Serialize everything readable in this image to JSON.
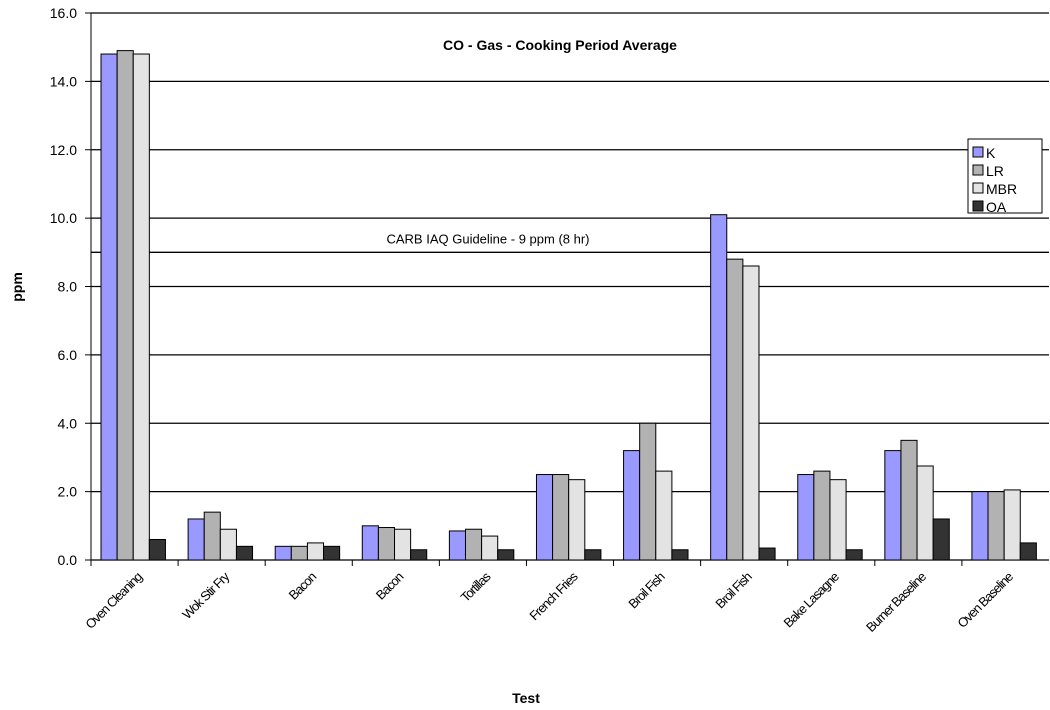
{
  "chart_data": {
    "type": "bar",
    "title": "CO - Gas - Cooking Period Average",
    "x_label": "Test",
    "y_label": "ppm",
    "categories": [
      "Oven Cleaning",
      "Wok Stir Fry",
      "Bacon",
      "Bacon",
      "Tortillas",
      "French Fries",
      "Broil Fish",
      "Broil Fish",
      "Bake Lasagne",
      "Burner Baseline",
      "Oven Baseline"
    ],
    "series": [
      {
        "name": "K",
        "color": "#9999ff",
        "values": [
          14.8,
          1.2,
          0.4,
          1.0,
          0.85,
          2.5,
          3.2,
          10.1,
          2.5,
          3.2,
          2.0
        ]
      },
      {
        "name": "LR",
        "color": "#b2b2b2",
        "values": [
          14.9,
          1.4,
          0.4,
          0.95,
          0.9,
          2.5,
          4.0,
          8.8,
          2.6,
          3.5,
          2.0
        ]
      },
      {
        "name": "MBR",
        "color": "#e3e3e3",
        "values": [
          14.8,
          0.9,
          0.5,
          0.9,
          0.7,
          2.35,
          2.6,
          8.6,
          2.35,
          2.75,
          2.05
        ]
      },
      {
        "name": "OA",
        "color": "#333333",
        "values": [
          0.6,
          0.4,
          0.4,
          0.3,
          0.3,
          0.3,
          0.3,
          0.35,
          0.3,
          1.2,
          0.5
        ]
      }
    ],
    "ylim": [
      0,
      16
    ],
    "yticks": [
      {
        "value": 0,
        "label": "0.0"
      },
      {
        "value": 2,
        "label": "2.0"
      },
      {
        "value": 4,
        "label": "4.0"
      },
      {
        "value": 6,
        "label": "6.0"
      },
      {
        "value": 8,
        "label": "8.0"
      },
      {
        "value": 10,
        "label": "10.0"
      },
      {
        "value": 12,
        "label": "12.0"
      },
      {
        "value": 14,
        "label": "14.0"
      },
      {
        "value": 16,
        "label": "16.0"
      }
    ],
    "grid": true,
    "reference_line": {
      "value": 9,
      "label": "CARB IAQ Guideline - 9 ppm (8 hr)"
    }
  }
}
